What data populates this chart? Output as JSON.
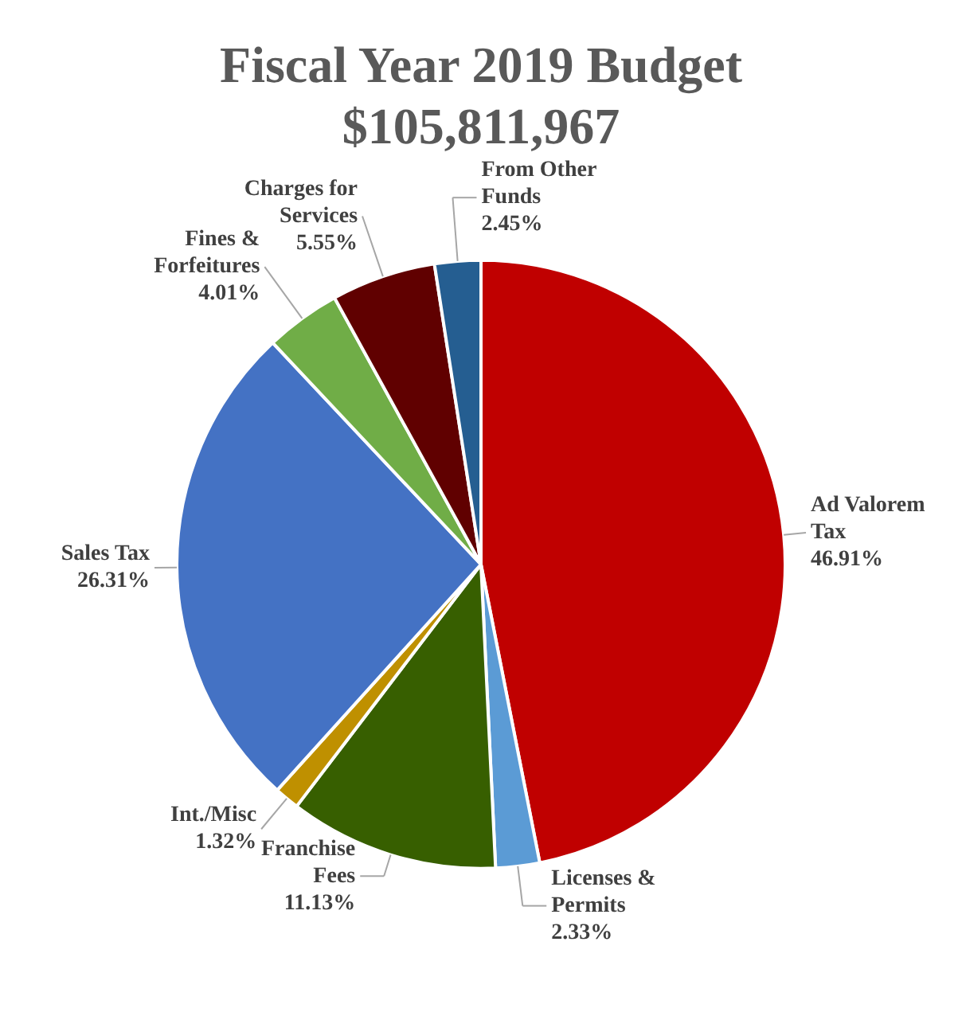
{
  "chart_data": {
    "type": "pie",
    "title": "Fiscal Year 2019 Budget",
    "subtitle": "$105,811,967",
    "categories": [
      "Ad Valorem Tax",
      "Licenses & Permits",
      "Franchise Fees",
      "Int./Misc",
      "Sales Tax",
      "Fines & Forfeitures",
      "Charges for Services",
      "From Other Funds"
    ],
    "values": [
      46.91,
      2.33,
      11.13,
      1.32,
      26.31,
      4.01,
      5.55,
      2.45
    ],
    "value_labels": [
      "46.91%",
      "2.33%",
      "11.13%",
      "1.32%",
      "26.31%",
      "4.01%",
      "5.55%",
      "2.45%"
    ],
    "colors": [
      "#c00000",
      "#5b9bd5",
      "#375f00",
      "#bf9000",
      "#4472c4",
      "#70ad47",
      "#600000",
      "#255e91"
    ],
    "legend": false
  }
}
